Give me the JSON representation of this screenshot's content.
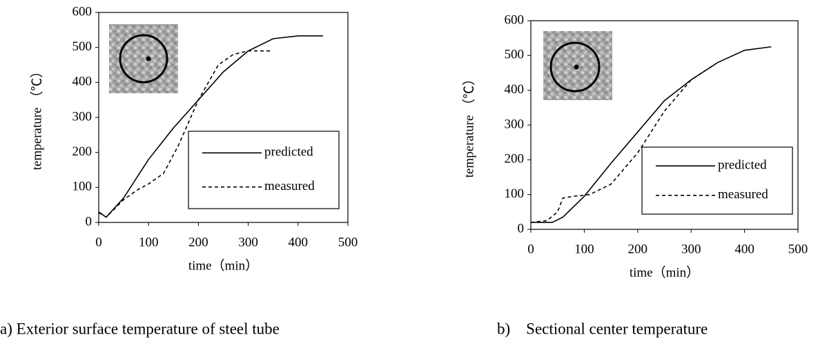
{
  "chart_data": [
    {
      "type": "line",
      "caption": "a) Exterior surface temperature of steel tube",
      "xlabel": "time（min）",
      "ylabel": "temperature （℃）",
      "xlim": [
        0,
        500
      ],
      "xticks": [
        0,
        100,
        200,
        300,
        400,
        500
      ],
      "ylim": [
        0,
        600
      ],
      "yticks": [
        0,
        100,
        200,
        300,
        400,
        500,
        600
      ],
      "series": [
        {
          "name": "predicted",
          "color": "#000000",
          "dash": "solid",
          "x": [
            0,
            15,
            50,
            100,
            150,
            200,
            250,
            300,
            350,
            400,
            450
          ],
          "values": [
            30,
            15,
            70,
            180,
            270,
            350,
            430,
            490,
            525,
            533,
            533
          ]
        },
        {
          "name": "measured",
          "color": "#000000",
          "dash": "dashed",
          "x": [
            0,
            15,
            50,
            80,
            100,
            130,
            160,
            200,
            240,
            270,
            300,
            345
          ],
          "values": [
            28,
            15,
            65,
            95,
            110,
            140,
            220,
            350,
            450,
            480,
            490,
            490
          ]
        }
      ]
    },
    {
      "type": "line",
      "caption": "b)    Sectional center temperature",
      "xlabel": "time（min）",
      "ylabel": "temperature （℃）",
      "xlim": [
        0,
        500
      ],
      "xticks": [
        0,
        100,
        200,
        300,
        400,
        500
      ],
      "ylim": [
        0,
        600
      ],
      "yticks": [
        0,
        100,
        200,
        300,
        400,
        500,
        600
      ],
      "series": [
        {
          "name": "predicted",
          "color": "#000000",
          "dash": "solid",
          "x": [
            0,
            40,
            60,
            100,
            150,
            200,
            250,
            300,
            350,
            400,
            450
          ],
          "values": [
            20,
            20,
            35,
            95,
            190,
            280,
            370,
            430,
            480,
            515,
            525
          ]
        },
        {
          "name": "measured",
          "color": "#000000",
          "dash": "dashed",
          "x": [
            0,
            30,
            50,
            60,
            80,
            110,
            150,
            200,
            250,
            300,
            340
          ],
          "values": [
            20,
            25,
            50,
            90,
            95,
            100,
            130,
            220,
            340,
            430,
            470
          ]
        }
      ]
    }
  ]
}
